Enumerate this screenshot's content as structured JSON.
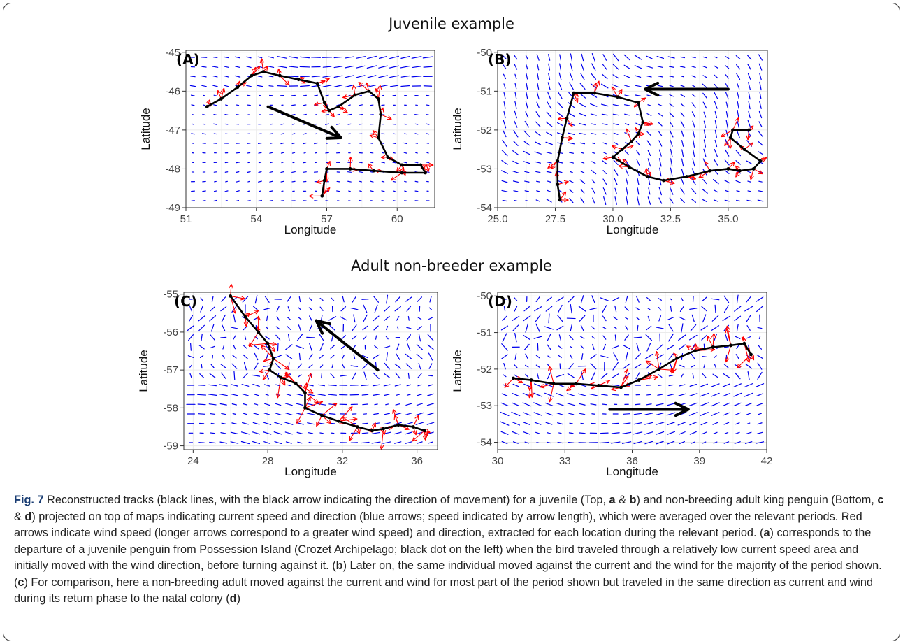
{
  "figure": {
    "row_titles": [
      "Juvenile example",
      "Adult non-breeder example"
    ],
    "caption": {
      "fig_label": "Fig. 7",
      "segments": [
        {
          "t": " Reconstructed tracks (black lines, with the black arrow indicating the direction of movement) for a juvenile (Top, "
        },
        {
          "t": "a",
          "b": true
        },
        {
          "t": " & "
        },
        {
          "t": "b",
          "b": true
        },
        {
          "t": ") and non-breeding adult king penguin (Bottom, "
        },
        {
          "t": "c",
          "b": true
        },
        {
          "t": " & "
        },
        {
          "t": "d",
          "b": true
        },
        {
          "t": ") projected on top of maps indicating current speed and direction (blue arrows; speed indicated by arrow length), which were averaged over the relevant periods. Red arrows indicate wind speed (longer arrows correspond to a greater wind speed) and direction, extracted for each location during the relevant period. ("
        },
        {
          "t": "a",
          "b": true
        },
        {
          "t": ") corresponds to the departure of a juvenile penguin from Possession Island (Crozet Archipelago; black dot on the left) when the bird traveled through a relatively low current speed area and initially moved with the wind direction, before turning against it. ("
        },
        {
          "t": "b",
          "b": true
        },
        {
          "t": ") Later on, the same individual moved against the current and the wind for the majority of the period shown. ("
        },
        {
          "t": "c",
          "b": true
        },
        {
          "t": ") For comparison, here a non-breeding adult moved against the current and wind for most part of the period shown but traveled in the same direction as current and wind during its return phase to the natal colony ("
        },
        {
          "t": "d",
          "b": true
        },
        {
          "t": ")"
        }
      ]
    },
    "colors": {
      "current": "#0000ee",
      "wind": "#ff0000",
      "track": "#000000",
      "grid": "#ebebeb",
      "panel_border": "#333333"
    }
  },
  "chart_data": [
    {
      "type": "scatter",
      "label": "(A)",
      "xlabel": "Longitude",
      "ylabel": "Latitude",
      "xlim": [
        51,
        61.6
      ],
      "ylim": [
        -49,
        -44.95
      ],
      "xticks": [
        51,
        54,
        57,
        60
      ],
      "yticks": [
        -45,
        -46,
        -47,
        -48,
        -49
      ],
      "track": [
        [
          51.9,
          -46.4
        ],
        [
          52.5,
          -46.2
        ],
        [
          53.2,
          -45.9
        ],
        [
          53.8,
          -45.6
        ],
        [
          54.3,
          -45.5
        ],
        [
          55.0,
          -45.6
        ],
        [
          55.8,
          -45.7
        ],
        [
          56.6,
          -45.8
        ],
        [
          56.9,
          -46.3
        ],
        [
          57.1,
          -46.5
        ],
        [
          57.5,
          -46.4
        ],
        [
          58.2,
          -46.1
        ],
        [
          58.8,
          -46.0
        ],
        [
          59.2,
          -46.2
        ],
        [
          59.3,
          -46.6
        ],
        [
          59.2,
          -47.2
        ],
        [
          59.6,
          -47.7
        ],
        [
          60.2,
          -47.9
        ],
        [
          61.0,
          -47.9
        ],
        [
          61.2,
          -48.1
        ],
        [
          60.2,
          -48.1
        ],
        [
          59.0,
          -48.05
        ],
        [
          58.0,
          -48.0
        ],
        [
          57.0,
          -48.0
        ],
        [
          56.9,
          -48.3
        ],
        [
          56.8,
          -48.7
        ]
      ],
      "move_arrow": {
        "from": [
          54.5,
          -46.4
        ],
        "to": [
          57.6,
          -47.2
        ]
      },
      "current_field": "eastward zonal flow, strongest near the northern edge",
      "wind_arrows_along_track": true
    },
    {
      "type": "scatter",
      "label": "(B)",
      "xlabel": "Longitude",
      "ylabel": "Latitude",
      "xlim": [
        25,
        36.7
      ],
      "ylim": [
        -54,
        -49.95
      ],
      "xticks": [
        25.0,
        27.5,
        30.0,
        32.5,
        35.0
      ],
      "yticks": [
        -50,
        -51,
        -52,
        -53,
        -54
      ],
      "track": [
        [
          27.7,
          -53.8
        ],
        [
          27.6,
          -53.4
        ],
        [
          27.6,
          -52.8
        ],
        [
          27.8,
          -52.2
        ],
        [
          28.0,
          -51.7
        ],
        [
          28.3,
          -51.05
        ],
        [
          29.2,
          -51.05
        ],
        [
          30.2,
          -51.15
        ],
        [
          31.1,
          -51.3
        ],
        [
          31.3,
          -51.8
        ],
        [
          31.1,
          -52.1
        ],
        [
          30.8,
          -52.3
        ],
        [
          30.4,
          -52.5
        ],
        [
          30.0,
          -52.7
        ],
        [
          30.7,
          -52.95
        ],
        [
          31.5,
          -53.2
        ],
        [
          32.2,
          -53.3
        ],
        [
          33.2,
          -53.2
        ],
        [
          34.2,
          -53.05
        ],
        [
          35.0,
          -53.0
        ],
        [
          35.5,
          -53.05
        ],
        [
          36.1,
          -53.0
        ],
        [
          36.4,
          -52.8
        ],
        [
          35.7,
          -52.5
        ],
        [
          35.1,
          -52.2
        ],
        [
          35.2,
          -52.0
        ],
        [
          35.9,
          -52.0
        ]
      ],
      "move_arrow": {
        "from": [
          35.0,
          -50.95
        ],
        "to": [
          31.4,
          -50.95
        ]
      },
      "current_field": "westward flow with northward component",
      "wind_arrows_along_track": true
    },
    {
      "type": "scatter",
      "label": "(C)",
      "xlabel": "Longitude",
      "ylabel": "Latitude",
      "xlim": [
        23.5,
        37.1
      ],
      "ylim": [
        -59.1,
        -54.95
      ],
      "xticks": [
        24,
        28,
        32,
        36
      ],
      "yticks": [
        -55,
        -56,
        -57,
        -58,
        -59
      ],
      "track": [
        [
          26.0,
          -55.05
        ],
        [
          26.8,
          -55.6
        ],
        [
          27.5,
          -56.0
        ],
        [
          28.0,
          -56.3
        ],
        [
          28.3,
          -56.7
        ],
        [
          28.1,
          -57.0
        ],
        [
          28.7,
          -57.2
        ],
        [
          29.5,
          -57.35
        ],
        [
          30.0,
          -57.6
        ],
        [
          30.0,
          -58.0
        ],
        [
          30.9,
          -58.2
        ],
        [
          31.8,
          -58.35
        ],
        [
          32.8,
          -58.5
        ],
        [
          33.6,
          -58.6
        ],
        [
          34.2,
          -58.55
        ],
        [
          35.0,
          -58.45
        ],
        [
          35.8,
          -58.5
        ],
        [
          36.4,
          -58.6
        ]
      ],
      "move_arrow": {
        "from": [
          33.9,
          -57.0
        ],
        "to": [
          30.6,
          -55.7
        ]
      },
      "current_field": "eastward flow in south, circulating eddies in north",
      "wind_arrows_along_track": true
    },
    {
      "type": "scatter",
      "label": "(D)",
      "xlabel": "Longitude",
      "ylabel": "Latitude",
      "xlim": [
        30,
        42
      ],
      "ylim": [
        -54.2,
        -49.9
      ],
      "xticks": [
        30,
        33,
        36,
        39,
        42
      ],
      "yticks": [
        -50,
        -51,
        -52,
        -53,
        -54
      ],
      "track": [
        [
          30.7,
          -52.25
        ],
        [
          31.5,
          -52.3
        ],
        [
          32.5,
          -52.4
        ],
        [
          33.5,
          -52.4
        ],
        [
          34.5,
          -52.45
        ],
        [
          35.5,
          -52.5
        ],
        [
          36.3,
          -52.3
        ],
        [
          37.2,
          -52.0
        ],
        [
          38.0,
          -51.7
        ],
        [
          38.8,
          -51.5
        ],
        [
          39.6,
          -51.4
        ],
        [
          40.4,
          -51.35
        ],
        [
          41.0,
          -51.3
        ],
        [
          41.3,
          -51.6
        ]
      ],
      "move_arrow": {
        "from": [
          35.0,
          -53.1
        ],
        "to": [
          38.5,
          -53.1
        ]
      },
      "current_field": "eastward flow with eddies in the north",
      "wind_arrows_along_track": true
    }
  ]
}
